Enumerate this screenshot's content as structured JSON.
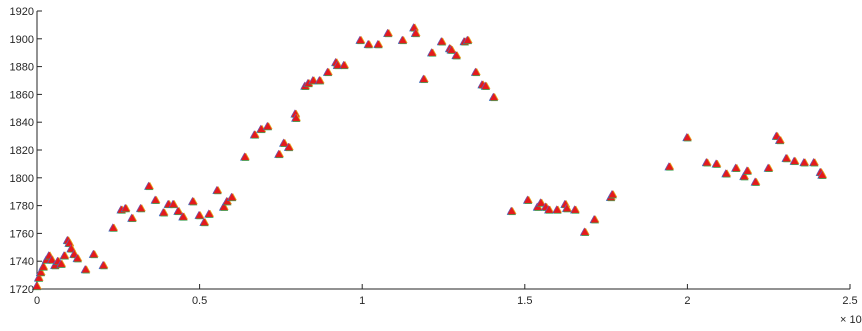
{
  "chart_data": {
    "type": "scatter",
    "title": "",
    "xlabel": "",
    "ylabel": "",
    "x_exponent_label": "× 10",
    "x_exponent": "4",
    "xlim": [
      0,
      25000
    ],
    "ylim": [
      1720,
      1920
    ],
    "x_ticks": [
      0,
      5000,
      10000,
      15000,
      20000,
      25000
    ],
    "x_tick_labels": [
      "0",
      "0.5",
      "1",
      "1.5",
      "2",
      "2.5"
    ],
    "y_ticks": [
      1720,
      1740,
      1760,
      1780,
      1800,
      1820,
      1840,
      1860,
      1880,
      1900,
      1920
    ],
    "y_tick_labels": [
      "1720",
      "1740",
      "1760",
      "1780",
      "1800",
      "1820",
      "1840",
      "1860",
      "1880",
      "1900",
      "1920"
    ],
    "grid": false,
    "legend": "none",
    "marker": "triangle",
    "series_colors": [
      "#2f6fbf",
      "#7e4fa5",
      "#3fa34d",
      "#e3a21a",
      "#e41a1c"
    ],
    "points": [
      [
        0,
        1722
      ],
      [
        60,
        1728
      ],
      [
        120,
        1732
      ],
      [
        200,
        1736
      ],
      [
        300,
        1741
      ],
      [
        380,
        1744
      ],
      [
        460,
        1741
      ],
      [
        560,
        1737
      ],
      [
        650,
        1740
      ],
      [
        750,
        1738
      ],
      [
        850,
        1744
      ],
      [
        950,
        1755
      ],
      [
        1000,
        1753
      ],
      [
        1060,
        1749
      ],
      [
        1150,
        1745
      ],
      [
        1250,
        1742
      ],
      [
        1500,
        1734
      ],
      [
        1750,
        1745
      ],
      [
        2050,
        1737
      ],
      [
        2350,
        1764
      ],
      [
        2600,
        1777
      ],
      [
        2730,
        1778
      ],
      [
        2930,
        1771
      ],
      [
        3200,
        1778
      ],
      [
        3450,
        1794
      ],
      [
        3650,
        1784
      ],
      [
        3900,
        1775
      ],
      [
        4050,
        1781
      ],
      [
        4200,
        1781
      ],
      [
        4350,
        1776
      ],
      [
        4500,
        1772
      ],
      [
        4800,
        1783
      ],
      [
        5000,
        1773
      ],
      [
        5150,
        1768
      ],
      [
        5300,
        1774
      ],
      [
        5550,
        1791
      ],
      [
        5750,
        1779
      ],
      [
        5850,
        1783
      ],
      [
        6000,
        1786
      ],
      [
        6400,
        1815
      ],
      [
        6700,
        1831
      ],
      [
        6900,
        1835
      ],
      [
        7100,
        1837
      ],
      [
        7450,
        1817
      ],
      [
        7600,
        1825
      ],
      [
        7750,
        1822
      ],
      [
        7950,
        1846
      ],
      [
        7970,
        1843
      ],
      [
        8250,
        1866
      ],
      [
        8350,
        1868
      ],
      [
        8500,
        1870
      ],
      [
        8700,
        1870
      ],
      [
        8950,
        1876
      ],
      [
        9200,
        1883
      ],
      [
        9250,
        1881
      ],
      [
        9450,
        1881
      ],
      [
        9950,
        1899
      ],
      [
        10200,
        1896
      ],
      [
        10500,
        1896
      ],
      [
        10800,
        1904
      ],
      [
        11250,
        1899
      ],
      [
        11600,
        1908
      ],
      [
        11650,
        1904
      ],
      [
        11900,
        1871
      ],
      [
        12150,
        1890
      ],
      [
        12450,
        1898
      ],
      [
        12700,
        1893
      ],
      [
        12750,
        1892
      ],
      [
        12900,
        1888
      ],
      [
        13150,
        1898
      ],
      [
        13250,
        1899
      ],
      [
        13500,
        1876
      ],
      [
        13700,
        1867
      ],
      [
        13800,
        1866
      ],
      [
        14050,
        1858
      ],
      [
        14600,
        1776
      ],
      [
        15100,
        1784
      ],
      [
        15400,
        1779
      ],
      [
        15500,
        1782
      ],
      [
        15650,
        1779
      ],
      [
        15750,
        1777
      ],
      [
        16000,
        1777
      ],
      [
        16250,
        1781
      ],
      [
        16300,
        1778
      ],
      [
        16550,
        1777
      ],
      [
        16850,
        1761
      ],
      [
        17150,
        1770
      ],
      [
        17650,
        1786
      ],
      [
        17700,
        1788
      ],
      [
        19450,
        1808
      ],
      [
        20000,
        1829
      ],
      [
        20600,
        1811
      ],
      [
        20900,
        1810
      ],
      [
        21200,
        1803
      ],
      [
        21500,
        1807
      ],
      [
        21750,
        1801
      ],
      [
        21850,
        1805
      ],
      [
        22100,
        1797
      ],
      [
        22500,
        1807
      ],
      [
        22750,
        1830
      ],
      [
        22850,
        1827
      ],
      [
        23050,
        1814
      ],
      [
        23300,
        1812
      ],
      [
        23600,
        1811
      ],
      [
        23900,
        1811
      ],
      [
        24100,
        1804
      ],
      [
        24150,
        1802
      ]
    ]
  }
}
